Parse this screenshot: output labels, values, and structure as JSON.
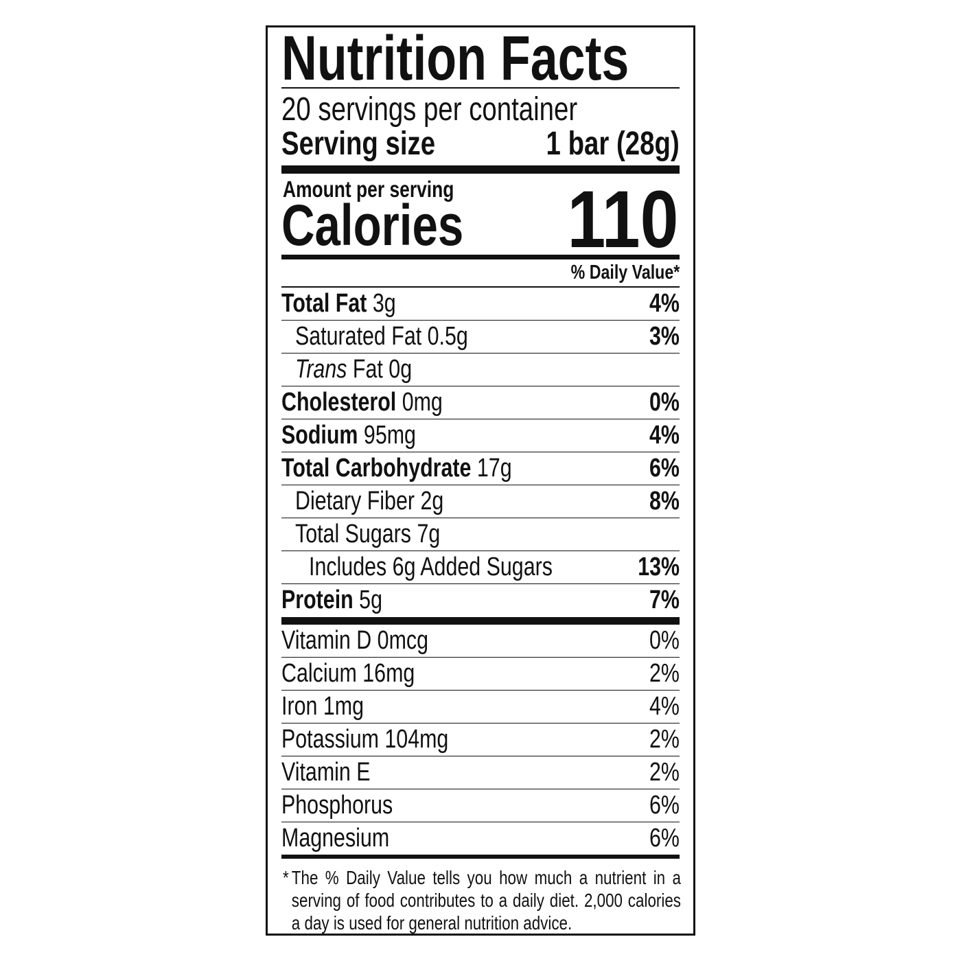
{
  "header": {
    "title": "Nutrition Facts",
    "servings_per_container": "20 servings per container",
    "serving_size_label": "Serving size",
    "serving_size_value": "1 bar (28g)"
  },
  "calories": {
    "amount_label": "Amount per serving",
    "label": "Calories",
    "value": "110"
  },
  "daily_value_header": "% Daily Value*",
  "nutrients": [
    {
      "name": "Total Fat",
      "amount": "3g",
      "dv": "4%"
    },
    {
      "name": "Saturated Fat",
      "amount": "0.5g",
      "dv": "3%"
    },
    {
      "name_italic": "Trans",
      "name": "Fat",
      "amount": "0g"
    },
    {
      "name": "Cholesterol",
      "amount": "0mg",
      "dv": "0%"
    },
    {
      "name": "Sodium",
      "amount": "95mg",
      "dv": "4%"
    },
    {
      "name": "Total Carbohydrate",
      "amount": "17g",
      "dv": "6%"
    },
    {
      "name": "Dietary Fiber",
      "amount": "2g",
      "dv": "8%"
    },
    {
      "name": "Total Sugars",
      "amount": "7g"
    },
    {
      "name": "Includes 6g Added Sugars",
      "dv": "13%"
    },
    {
      "name": "Protein",
      "amount": "5g",
      "dv": "7%"
    }
  ],
  "vitamins": [
    {
      "name": "Vitamin D",
      "amount": "0mcg",
      "dv": "0%"
    },
    {
      "name": "Calcium",
      "amount": "16mg",
      "dv": "2%"
    },
    {
      "name": "Iron",
      "amount": "1mg",
      "dv": "4%"
    },
    {
      "name": "Potassium",
      "amount": "104mg",
      "dv": "2%"
    },
    {
      "name": "Vitamin E",
      "dv": "2%"
    },
    {
      "name": "Phosphorus",
      "dv": "6%"
    },
    {
      "name": "Magnesium",
      "dv": "6%"
    }
  ],
  "footnote": {
    "marker": "*",
    "text": "The % Daily Value tells you how much a nutrient in a serving of food contributes to a daily diet. 2,000 calories a day is used for general nutrition advice."
  }
}
